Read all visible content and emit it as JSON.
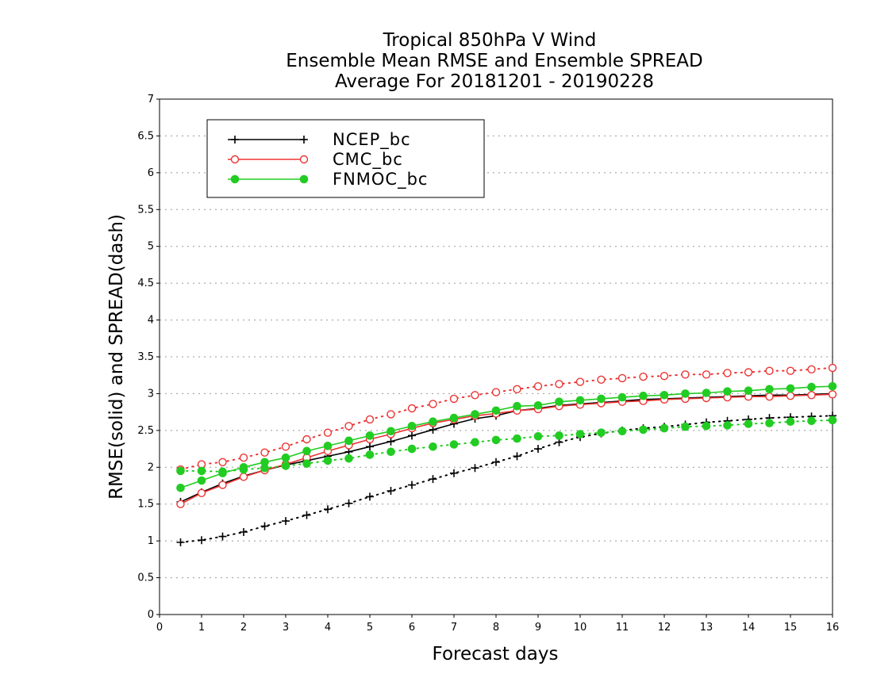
{
  "chart_data": {
    "type": "line",
    "title_lines": [
      "Tropical 850hPa V Wind",
      "Ensemble Mean RMSE and Ensemble SPREAD",
      "Average For 20181201 - 20190228"
    ],
    "xlabel": "Forecast days",
    "ylabel": "RMSE(solid) and SPREAD(dash)",
    "xlim": [
      0,
      16
    ],
    "ylim": [
      0,
      7
    ],
    "x_ticks": [
      "0",
      "1",
      "2",
      "3",
      "4",
      "5",
      "6",
      "7",
      "8",
      "9",
      "10",
      "11",
      "12",
      "13",
      "14",
      "15",
      "16"
    ],
    "y_ticks": [
      "0",
      "0.5",
      "1",
      "1.5",
      "2",
      "2.5",
      "3",
      "3.5",
      "4",
      "4.5",
      "5",
      "5.5",
      "6",
      "6.5",
      "7"
    ],
    "grid": "horizontal dotted",
    "legend_position": "top-left",
    "x": [
      0.5,
      1,
      1.5,
      2,
      2.5,
      3,
      3.5,
      4,
      4.5,
      5,
      5.5,
      6,
      6.5,
      7,
      7.5,
      8,
      8.5,
      9,
      9.5,
      10,
      10.5,
      11,
      11.5,
      12,
      12.5,
      13,
      13.5,
      14,
      14.5,
      15,
      15.5,
      16
    ],
    "series": [
      {
        "name": "NCEP_bc",
        "color": "#000000",
        "marker": "plus",
        "rmse": [
          1.53,
          1.66,
          1.78,
          1.88,
          1.96,
          2.03,
          2.09,
          2.15,
          2.21,
          2.28,
          2.35,
          2.43,
          2.51,
          2.59,
          2.66,
          2.7,
          2.77,
          2.8,
          2.84,
          2.86,
          2.88,
          2.9,
          2.92,
          2.93,
          2.94,
          2.95,
          2.96,
          2.97,
          2.98,
          2.98,
          2.99,
          3.0
        ],
        "spread": [
          0.98,
          1.01,
          1.06,
          1.12,
          1.2,
          1.27,
          1.35,
          1.43,
          1.51,
          1.6,
          1.68,
          1.76,
          1.84,
          1.92,
          1.99,
          2.07,
          2.15,
          2.25,
          2.34,
          2.41,
          2.46,
          2.5,
          2.53,
          2.55,
          2.58,
          2.61,
          2.63,
          2.65,
          2.67,
          2.68,
          2.69,
          2.7
        ]
      },
      {
        "name": "CMC_bc",
        "color": "#ee3333",
        "marker": "open-circle",
        "rmse": [
          1.5,
          1.65,
          1.76,
          1.87,
          1.96,
          2.04,
          2.13,
          2.22,
          2.3,
          2.38,
          2.45,
          2.53,
          2.6,
          2.65,
          2.7,
          2.73,
          2.77,
          2.79,
          2.83,
          2.85,
          2.87,
          2.89,
          2.9,
          2.92,
          2.93,
          2.94,
          2.95,
          2.96,
          2.96,
          2.97,
          2.98,
          2.99
        ],
        "spread": [
          1.97,
          2.04,
          2.07,
          2.13,
          2.2,
          2.28,
          2.38,
          2.47,
          2.56,
          2.65,
          2.72,
          2.8,
          2.86,
          2.93,
          2.98,
          3.02,
          3.06,
          3.1,
          3.13,
          3.16,
          3.19,
          3.21,
          3.23,
          3.24,
          3.26,
          3.26,
          3.28,
          3.29,
          3.31,
          3.31,
          3.33,
          3.35
        ]
      },
      {
        "name": "FNMOC_bc",
        "color": "#22cc22",
        "marker": "filled-circle",
        "rmse": [
          1.72,
          1.82,
          1.92,
          2.0,
          2.07,
          2.13,
          2.22,
          2.29,
          2.36,
          2.43,
          2.49,
          2.56,
          2.62,
          2.67,
          2.72,
          2.77,
          2.83,
          2.84,
          2.89,
          2.91,
          2.93,
          2.95,
          2.97,
          2.98,
          3.0,
          3.01,
          3.03,
          3.04,
          3.06,
          3.07,
          3.09,
          3.1
        ],
        "spread": [
          1.95,
          1.95,
          1.94,
          1.97,
          1.99,
          2.02,
          2.05,
          2.09,
          2.12,
          2.17,
          2.21,
          2.25,
          2.28,
          2.31,
          2.34,
          2.37,
          2.39,
          2.42,
          2.43,
          2.45,
          2.47,
          2.49,
          2.51,
          2.53,
          2.55,
          2.56,
          2.57,
          2.59,
          2.6,
          2.62,
          2.63,
          2.64
        ]
      }
    ]
  }
}
